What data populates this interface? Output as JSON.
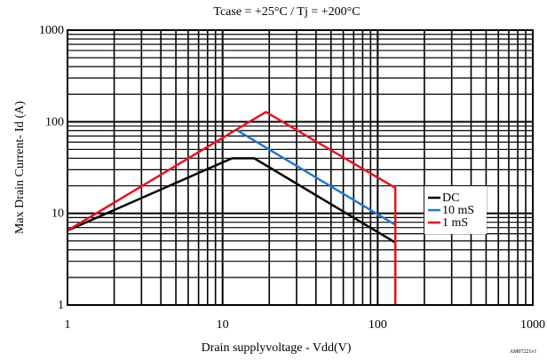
{
  "chart_data": {
    "type": "line",
    "title": "Tcase = +25°C  /  Tj = +200°C",
    "xlabel": "Drain supplyvoltage - Vdd(V)",
    "ylabel": "Max Drain Current- Id (A)",
    "x_scale": "log",
    "y_scale": "log",
    "xlim": [
      1,
      1000
    ],
    "ylim": [
      1,
      1000
    ],
    "x_ticks": [
      "1",
      "10",
      "100",
      "1000"
    ],
    "y_ticks": [
      "1",
      "10",
      "100",
      "1000"
    ],
    "grid": true,
    "legend_position": "right",
    "series": [
      {
        "name": "DC",
        "color": "#000000",
        "x": [
          1,
          11.5,
          16,
          130,
          130
        ],
        "y": [
          6.5,
          40,
          40,
          4.8,
          1
        ]
      },
      {
        "name": "10 mS",
        "color": "#1f78d1",
        "x": [
          12.5,
          130
        ],
        "y": [
          80,
          7.5
        ]
      },
      {
        "name": "1 mS",
        "color": "#e8141c",
        "x": [
          1,
          19,
          130,
          130
        ],
        "y": [
          6.5,
          128,
          19,
          1
        ]
      }
    ],
    "annotation": "AM07221v1"
  }
}
